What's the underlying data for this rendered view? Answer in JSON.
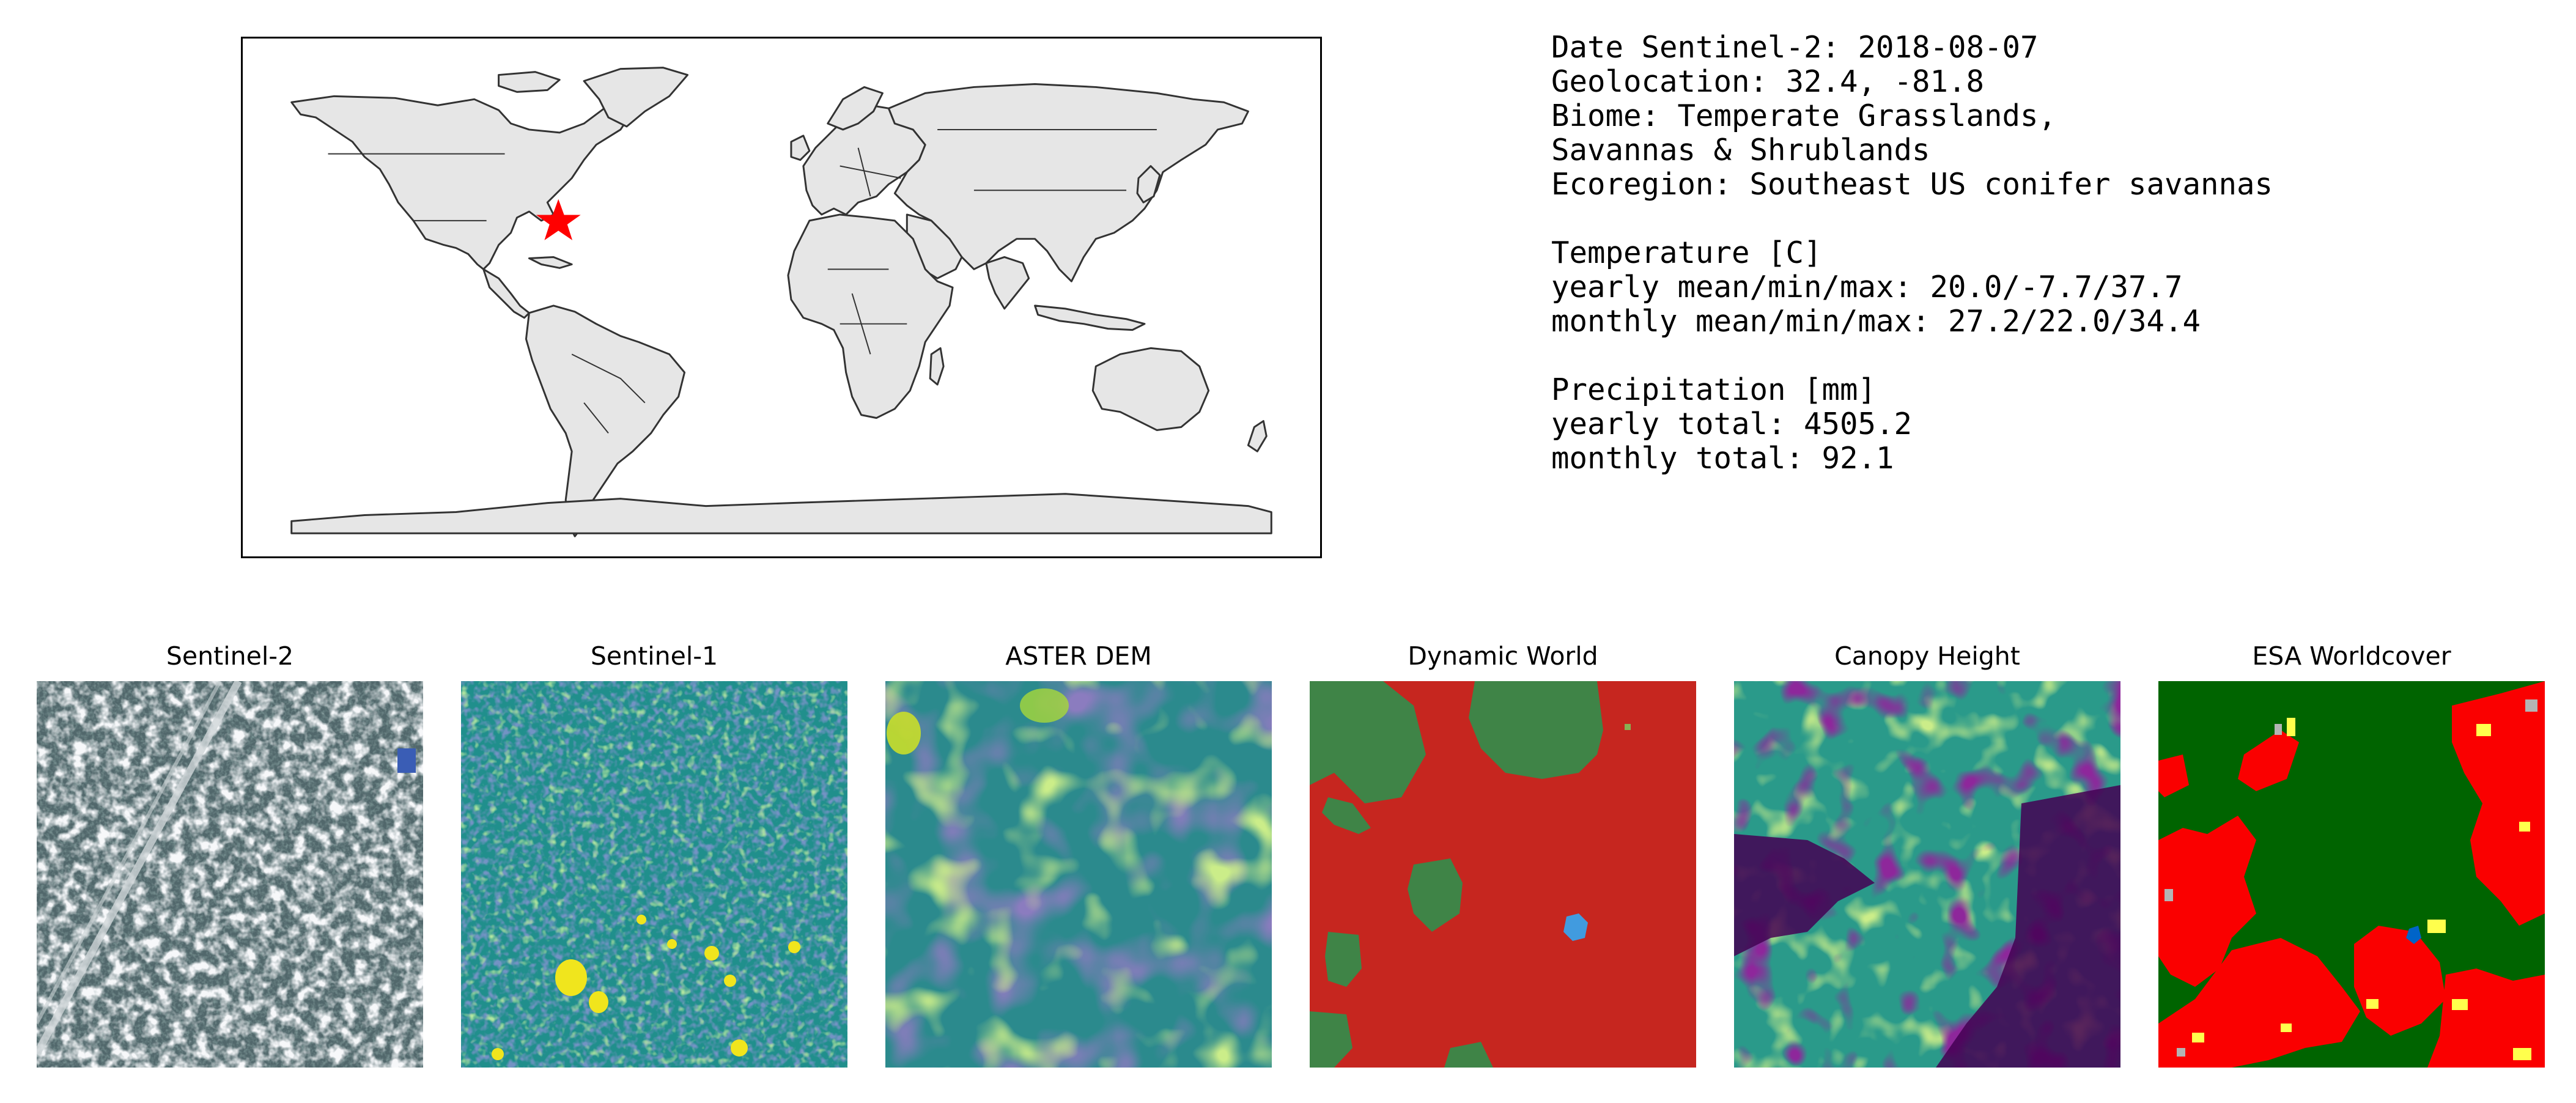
{
  "info": {
    "lines": [
      "Date Sentinel-2: 2018-08-07",
      "Geolocation: 32.4, -81.8",
      "Biome: Temperate Grasslands,",
      "Savannas & Shrublands",
      "Ecoregion: Southeast US conifer savannas",
      "",
      "Temperature [C]",
      "yearly mean/min/max: 20.0/-7.7/37.7",
      "monthly mean/min/max: 27.2/22.0/34.4",
      "",
      "Precipitation [mm]",
      "yearly total: 4505.2",
      "monthly total: 92.1"
    ]
  },
  "map": {
    "marker_color": "#ff0000",
    "land_color": "#e6e6e6",
    "border_color": "#333333"
  },
  "panels": [
    {
      "title": "Sentinel-2"
    },
    {
      "title": "Sentinel-1"
    },
    {
      "title": "ASTER DEM"
    },
    {
      "title": "Dynamic World"
    },
    {
      "title": "Canopy Height"
    },
    {
      "title": "ESA Worldcover"
    }
  ]
}
